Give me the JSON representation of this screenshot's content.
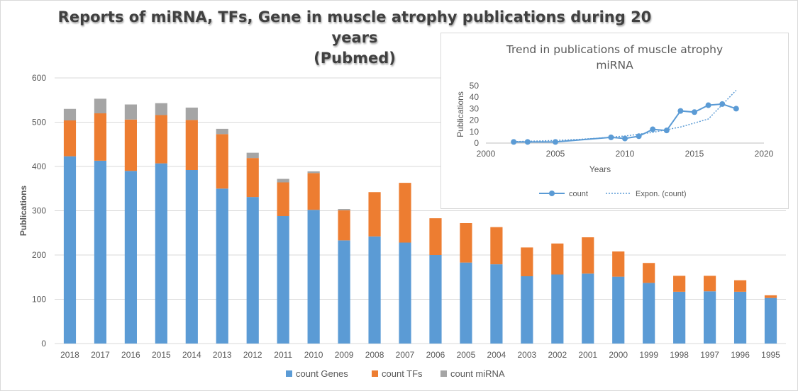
{
  "title": {
    "line1": "Reports of miRNA, TFs, Gene in muscle atrophy publications during 20 years",
    "line2": "(Pubmed)"
  },
  "colors": {
    "genes": "#5b9bd5",
    "tfs": "#ed7d31",
    "mirna": "#a5a5a5",
    "trend": "#5b9bd5",
    "grid": "#d9d9d9",
    "axis_text": "#595959"
  },
  "chart_data": [
    {
      "type": "bar",
      "stacked": true,
      "title": "Reports of miRNA, TFs, Gene in muscle atrophy publications during 20 years (Pubmed)",
      "xlabel": "",
      "ylabel": "Publications",
      "ylim": [
        0,
        600
      ],
      "yticks": [
        0,
        100,
        200,
        300,
        400,
        500,
        600
      ],
      "grid": true,
      "legend_position": "bottom",
      "categories": [
        "2018",
        "2017",
        "2016",
        "2015",
        "2014",
        "2013",
        "2012",
        "2011",
        "2010",
        "2009",
        "2008",
        "2007",
        "2006",
        "2005",
        "2004",
        "2003",
        "2002",
        "2001",
        "2000",
        "1999",
        "1998",
        "1997",
        "1996",
        "1995"
      ],
      "series": [
        {
          "name": "count Genes",
          "values": [
            423,
            413,
            390,
            407,
            392,
            350,
            331,
            288,
            302,
            233,
            242,
            228,
            200,
            183,
            179,
            152,
            156,
            158,
            151,
            137,
            117,
            118,
            117,
            103
          ]
        },
        {
          "name": "count TFs",
          "values": [
            81,
            107,
            116,
            109,
            113,
            123,
            88,
            76,
            83,
            68,
            100,
            135,
            83,
            89,
            84,
            65,
            70,
            82,
            57,
            45,
            36,
            35,
            26,
            6
          ]
        },
        {
          "name": "count miRNA",
          "values": [
            26,
            33,
            34,
            27,
            28,
            12,
            12,
            8,
            4,
            3,
            0,
            0,
            0,
            0,
            0,
            0,
            0,
            0,
            0,
            0,
            0,
            0,
            0,
            0
          ]
        }
      ]
    },
    {
      "type": "line",
      "title": "Trend in publications of muscle atrophy miRNA",
      "title_line1": "Trend in publications of muscle atrophy",
      "title_line2": "miRNA",
      "xlabel": "Years",
      "ylabel": "Publications",
      "xlim": [
        2000,
        2020
      ],
      "ylim": [
        0,
        50
      ],
      "xticks": [
        2000,
        2005,
        2010,
        2015,
        2020
      ],
      "yticks": [
        0,
        10,
        20,
        30,
        40,
        50
      ],
      "grid": false,
      "legend_position": "bottom",
      "series": [
        {
          "name": "count",
          "style": "line-markers",
          "x": [
            2002,
            2003,
            2005,
            2009,
            2010,
            2011,
            2012,
            2013,
            2014,
            2015,
            2016,
            2017,
            2018
          ],
          "y": [
            1,
            1,
            1,
            5,
            4,
            6,
            12,
            11,
            28,
            27,
            33,
            34,
            30
          ]
        },
        {
          "name": "Expon. (count)",
          "style": "dotted",
          "x": [
            2002,
            2004,
            2006,
            2008,
            2010,
            2012,
            2014,
            2016,
            2018
          ],
          "y": [
            1.3,
            1.9,
            2.8,
            4.2,
            6.2,
            9.3,
            14,
            21,
            46
          ]
        }
      ]
    }
  ]
}
